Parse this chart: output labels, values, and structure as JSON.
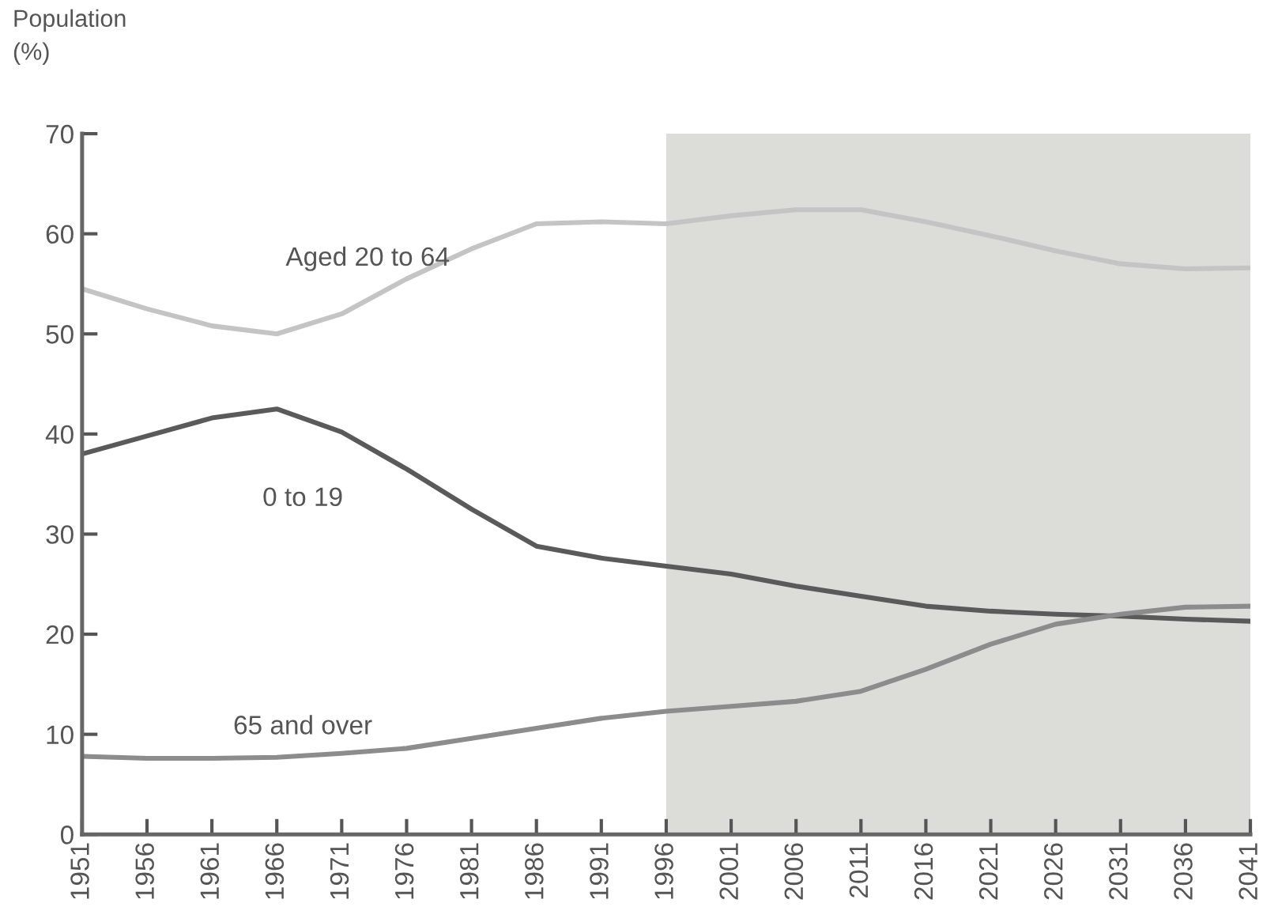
{
  "chart_data": {
    "type": "line",
    "ylabel": "Population\n(%)",
    "x": [
      1951,
      1956,
      1961,
      1966,
      1971,
      1976,
      1981,
      1986,
      1991,
      1996,
      2001,
      2006,
      2011,
      2016,
      2021,
      2026,
      2031,
      2036,
      2041
    ],
    "series": [
      {
        "name": "Aged 20 to 64",
        "color": "#c4c4c4",
        "values": [
          54.5,
          52.5,
          50.8,
          50,
          52,
          55.5,
          58.5,
          61,
          61.2,
          61,
          61.8,
          62.4,
          62.4,
          61.2,
          59.8,
          58.3,
          57,
          56.5,
          56.6
        ]
      },
      {
        "name": "0 to 19",
        "color": "#5a5a5a",
        "values": [
          38,
          39.8,
          41.6,
          42.5,
          40.2,
          36.5,
          32.5,
          28.8,
          27.6,
          26.8,
          26,
          24.8,
          23.8,
          22.8,
          22.3,
          22,
          21.8,
          21.5,
          21.3
        ]
      },
      {
        "name": "65 and over",
        "color": "#8c8c8c",
        "values": [
          7.8,
          7.6,
          7.6,
          7.7,
          8.1,
          8.6,
          9.6,
          10.6,
          11.6,
          12.3,
          12.8,
          13.3,
          14.3,
          16.5,
          19,
          21,
          22,
          22.7,
          22.8
        ]
      }
    ],
    "xlim": [
      1951,
      2041
    ],
    "ylim": [
      0,
      70
    ],
    "xticks": [
      1951,
      1956,
      1961,
      1966,
      1971,
      1976,
      1981,
      1986,
      1991,
      1996,
      2001,
      2006,
      2011,
      2016,
      2021,
      2026,
      2031,
      2036,
      2041
    ],
    "yticks": [
      0,
      10,
      20,
      30,
      40,
      50,
      60,
      70
    ],
    "bands": [
      {
        "axis": "x",
        "from": 1996,
        "to": 2041,
        "color": "#dcdcd8"
      }
    ],
    "grid": false,
    "legend": false,
    "marker": "none",
    "line_style": "solid"
  }
}
